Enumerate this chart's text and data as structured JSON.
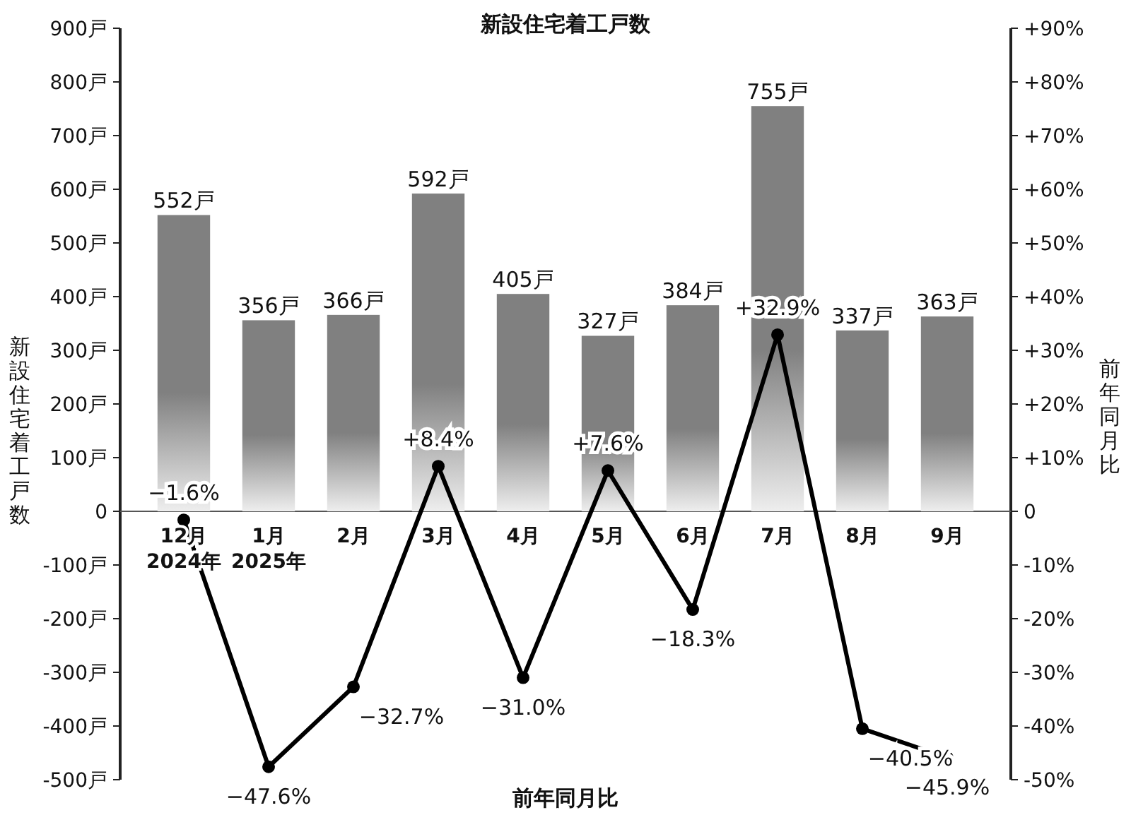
{
  "chart_data": {
    "type": "bar",
    "title": "新設住宅着工戸数",
    "xlabel": "前年同月比",
    "ylabel": "新設住宅着工戸数",
    "y2label": "前年同月比",
    "categories": [
      "12月\n2024年",
      "1月\n2025年",
      "2月",
      "3月",
      "4月",
      "5月",
      "6月",
      "7月",
      "8月",
      "9月"
    ],
    "series": [
      {
        "color": "#808080",
        "values": [
          552,
          356,
          366,
          592,
          405,
          327,
          384,
          755,
          337,
          363
        ],
        "value_labels": [
          "552戸",
          "356戸",
          "366戸",
          "592戸",
          "405戸",
          "327戸",
          "384戸",
          "755戸",
          "337戸",
          "363戸"
        ]
      },
      {
        "type": "line",
        "axis": "y2",
        "color": "#000000",
        "marker": "circle",
        "values": [
          -1.6,
          -47.6,
          -32.7,
          8.4,
          -31.0,
          7.6,
          -18.3,
          32.9,
          -40.5,
          -45.9
        ],
        "value_labels": [
          "−1.6%",
          "−47.6%",
          "−32.7%",
          "+8.4%",
          "−31.0%",
          "+7.6%",
          "−18.3%",
          "+32.9%",
          "−40.5%",
          "−45.9%"
        ]
      }
    ],
    "ylim": [
      -500,
      900
    ],
    "yticks": [
      {
        "value": -500,
        "label": "-500戸"
      },
      {
        "value": -400,
        "label": "-400戸"
      },
      {
        "value": -300,
        "label": "-300戸"
      },
      {
        "value": -200,
        "label": "-200戸"
      },
      {
        "value": -100,
        "label": "-100戸"
      },
      0,
      {
        "value": 100,
        "label": "100戸"
      },
      {
        "value": 200,
        "label": "200戸"
      },
      {
        "value": 300,
        "label": "300戸"
      },
      {
        "value": 400,
        "label": "400戸"
      },
      {
        "value": 500,
        "label": "500戸"
      },
      {
        "value": 600,
        "label": "600戸"
      },
      {
        "value": 700,
        "label": "700戸"
      },
      {
        "value": 800,
        "label": "800戸"
      },
      {
        "value": 900,
        "label": "900戸"
      }
    ],
    "y2lim": [
      -50,
      90
    ],
    "y2ticks": [
      {
        "value": -50,
        "label": "-50%"
      },
      {
        "value": -40,
        "label": "-40%"
      },
      {
        "value": -30,
        "label": "-30%"
      },
      {
        "value": -20,
        "label": "-20%"
      },
      {
        "value": -10,
        "label": "-10%"
      },
      0,
      {
        "value": 10,
        "label": "+10%"
      },
      {
        "value": 20,
        "label": "+20%"
      },
      {
        "value": 30,
        "label": "+30%"
      },
      {
        "value": 40,
        "label": "+40%"
      },
      {
        "value": 50,
        "label": "+50%"
      },
      {
        "value": 60,
        "label": "+60%"
      },
      {
        "value": 70,
        "label": "+70%"
      },
      {
        "value": 80,
        "label": "+80%"
      },
      {
        "value": 90,
        "label": "+90%"
      }
    ]
  }
}
